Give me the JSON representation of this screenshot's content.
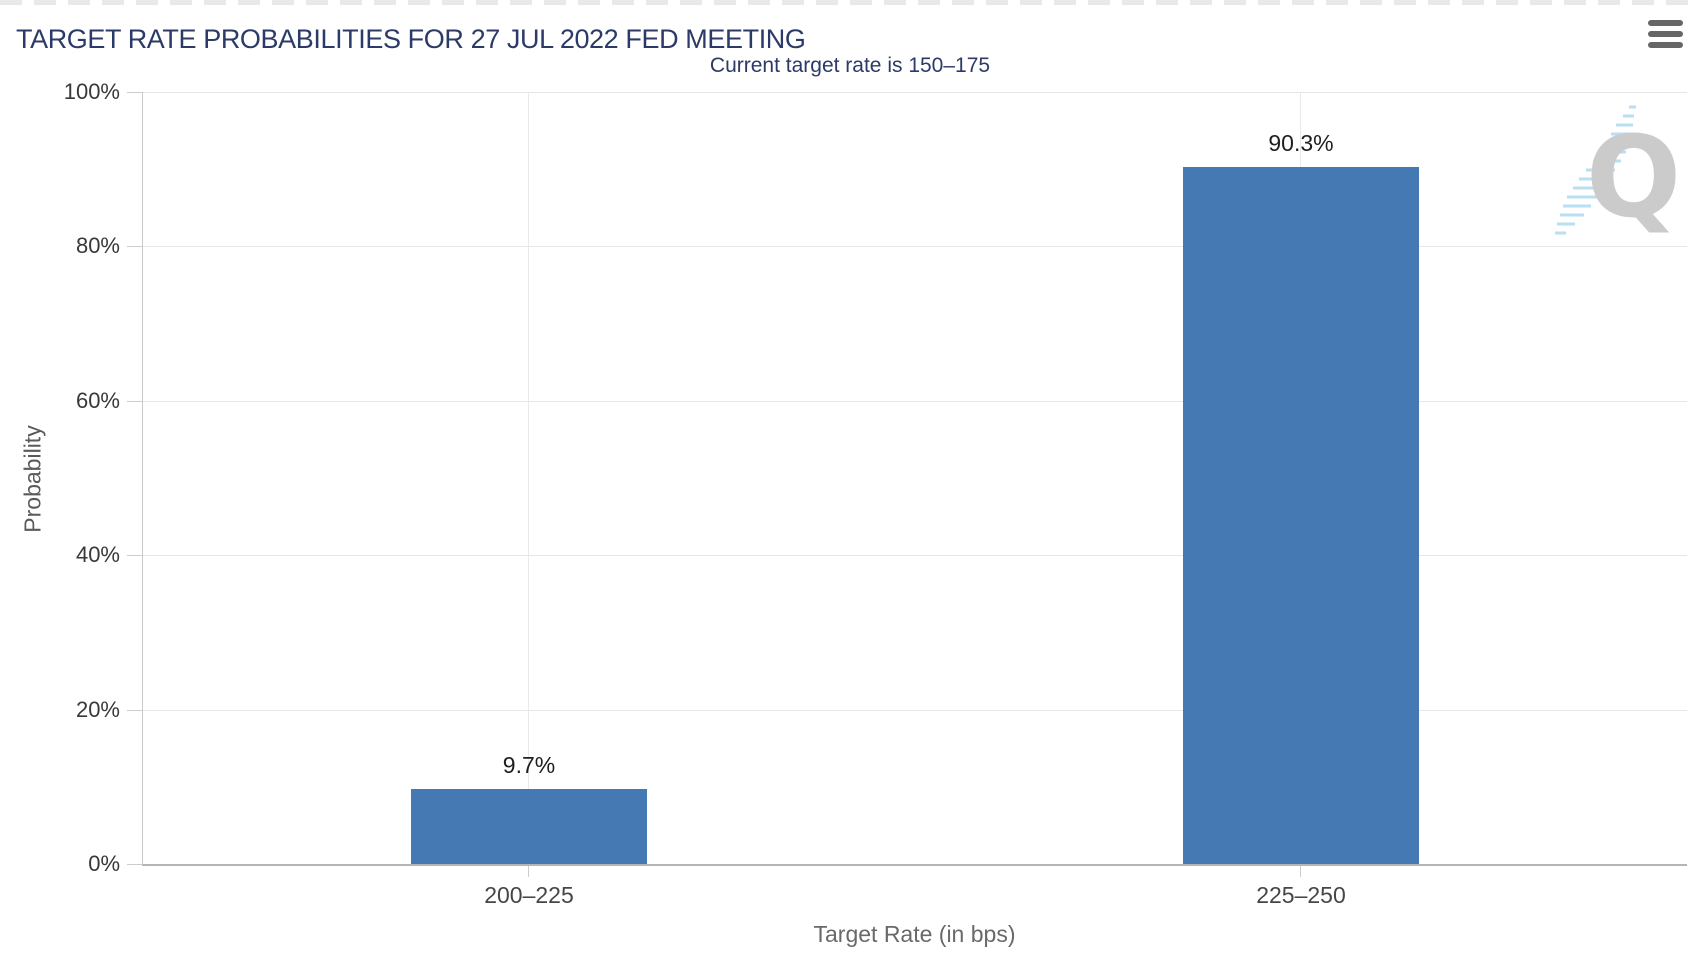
{
  "chart_data": {
    "type": "bar",
    "title": "TARGET RATE PROBABILITIES FOR 27 JUL 2022 FED MEETING",
    "subtitle": "Current target rate is 150–175",
    "categories": [
      "200–225",
      "225–250"
    ],
    "values": [
      9.7,
      90.3
    ],
    "data_labels": [
      "9.7%",
      "90.3%"
    ],
    "xlabel": "Target Rate (in bps)",
    "ylabel": "Probability",
    "ylim": [
      0,
      100
    ],
    "ytick_values": [
      0,
      20,
      40,
      60,
      80,
      100
    ],
    "ytick_labels": [
      "0%",
      "20%",
      "40%",
      "60%",
      "80%",
      "100%"
    ],
    "grid": true,
    "legend": "none",
    "colors": {
      "bar": "#4579b4",
      "title": "#2b3a67",
      "subtitle": "#2b3a67",
      "gridline": "#e6e6e6"
    }
  },
  "icons": {
    "menu": "hamburger-icon"
  },
  "watermark": {
    "letter": "Q"
  }
}
